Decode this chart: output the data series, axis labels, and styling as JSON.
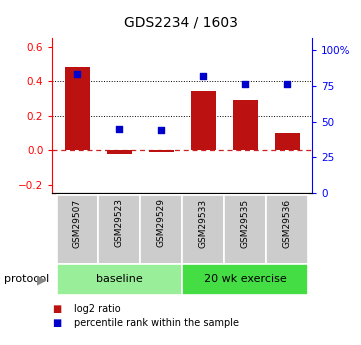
{
  "title": "GDS2234 / 1603",
  "samples": [
    "GSM29507",
    "GSM29523",
    "GSM29529",
    "GSM29533",
    "GSM29535",
    "GSM29536"
  ],
  "log2_ratio": [
    0.48,
    -0.02,
    -0.01,
    0.34,
    0.29,
    0.1
  ],
  "percentile_rank": [
    83,
    45,
    44,
    82,
    76,
    76
  ],
  "bar_color": "#bb1111",
  "dot_color": "#0000cc",
  "left_ylim": [
    -0.25,
    0.65
  ],
  "right_ylim": [
    0,
    108.33
  ],
  "left_yticks": [
    -0.2,
    0.0,
    0.2,
    0.4,
    0.6
  ],
  "right_yticks": [
    0,
    25,
    50,
    75,
    100
  ],
  "right_yticklabels": [
    "0",
    "25",
    "50",
    "75",
    "100%"
  ],
  "dotted_lines": [
    0.2,
    0.4
  ],
  "zero_line_color": "#cc2222",
  "groups": [
    {
      "label": "baseline",
      "indices": [
        0,
        1,
        2
      ],
      "color": "#99ee99"
    },
    {
      "label": "20 wk exercise",
      "indices": [
        3,
        4,
        5
      ],
      "color": "#44dd44"
    }
  ],
  "protocol_label": "protocol",
  "legend": [
    {
      "label": "log2 ratio",
      "color": "#bb1111"
    },
    {
      "label": "percentile rank within the sample",
      "color": "#0000cc"
    }
  ],
  "background_color": "#ffffff",
  "gray_box_color": "#cccccc",
  "gray_box_edge": "#ffffff"
}
